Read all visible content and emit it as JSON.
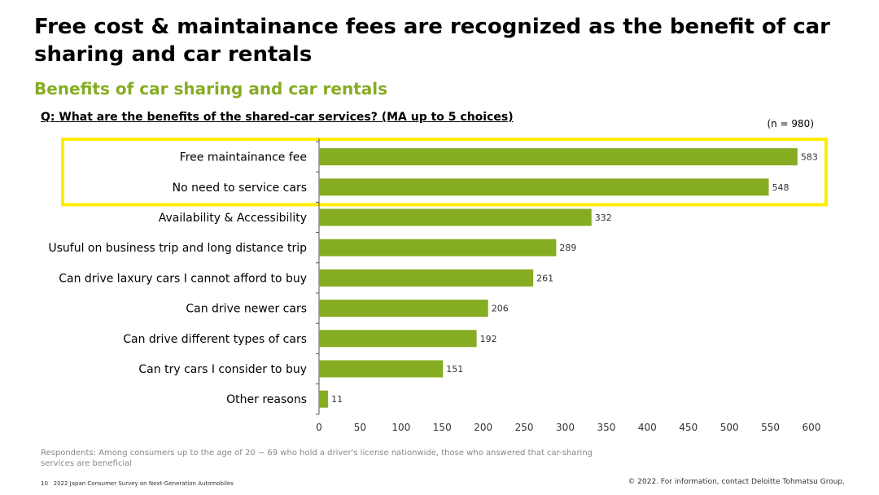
{
  "header": {
    "title": "Free cost & maintainance fees are recognized as the benefit of car sharing and car rentals",
    "subtitle": "Benefits of car sharing and car rentals",
    "question": "Q: What are the benefits of the shared-car services? (MA up to 5 choices)",
    "sample_size": "(n = 980)"
  },
  "chart_data": {
    "type": "bar",
    "orientation": "horizontal",
    "title": "Benefits of car sharing and car rentals",
    "categories": [
      "Free maintainance fee",
      "No need to service cars",
      "Availability & Accessibility",
      "Usuful on business trip and long distance trip",
      "Can drive laxury cars I cannot afford to buy",
      "Can drive newer cars",
      "Can drive different types of cars",
      "Can try cars I consider to buy",
      "Other reasons"
    ],
    "values": [
      583,
      548,
      332,
      289,
      261,
      206,
      192,
      151,
      11
    ],
    "xlim": [
      0,
      600
    ],
    "xticks": [
      0,
      50,
      100,
      150,
      200,
      250,
      300,
      350,
      400,
      450,
      500,
      550,
      600
    ],
    "highlight": [
      0,
      1
    ],
    "grid": false,
    "colors": {
      "bar": "#86AC22",
      "highlight": "#FFED00"
    }
  },
  "notes": {
    "respondents": "Respondents: Among consumers up to the age of 20 ~ 69 who hold a driver's license nationwide, those who answered that car-sharing services are beneficial"
  },
  "footer": {
    "page_number": "10",
    "report_title": "2022 Japan Consumer Survey on Next-Generation Automobiles",
    "copyright": "© 2022. For information, contact Deloitte Tohmatsu Group."
  }
}
